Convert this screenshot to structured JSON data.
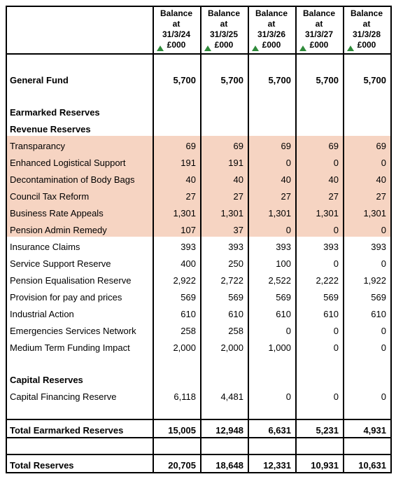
{
  "columns": [
    {
      "l1": "Balance",
      "l2": "at",
      "l3": "31/3/24",
      "l4": "£000"
    },
    {
      "l1": "Balance",
      "l2": "at",
      "l3": "31/3/25",
      "l4": "£000"
    },
    {
      "l1": "Balance",
      "l2": "at",
      "l3": "31/3/26",
      "l4": "£000"
    },
    {
      "l1": "Balance",
      "l2": "at",
      "l3": "31/3/27",
      "l4": "£000"
    },
    {
      "l1": "Balance",
      "l2": "at",
      "l3": "31/3/28",
      "l4": "£000"
    }
  ],
  "general_fund": {
    "label": "General Fund",
    "values": [
      "5,700",
      "5,700",
      "5,700",
      "5,700",
      "5,700"
    ]
  },
  "section_earmarked": "Earmarked Reserves",
  "section_revenue": "Revenue Reserves",
  "rows_highlight": [
    {
      "label": "Transparancy",
      "values": [
        "69",
        "69",
        "69",
        "69",
        "69"
      ]
    },
    {
      "label": "Enhanced Logistical Support",
      "values": [
        "191",
        "191",
        "0",
        "0",
        "0"
      ]
    },
    {
      "label": "Decontamination of Body Bags",
      "values": [
        "40",
        "40",
        "40",
        "40",
        "40"
      ]
    },
    {
      "label": "Council Tax Reform",
      "values": [
        "27",
        "27",
        "27",
        "27",
        "27"
      ]
    },
    {
      "label": "Business Rate Appeals",
      "values": [
        "1,301",
        "1,301",
        "1,301",
        "1,301",
        "1,301"
      ]
    },
    {
      "label": "Pension Admin Remedy",
      "values": [
        "107",
        "37",
        "0",
        "0",
        "0"
      ]
    }
  ],
  "rows_plain": [
    {
      "label": "Insurance Claims",
      "values": [
        "393",
        "393",
        "393",
        "393",
        "393"
      ]
    },
    {
      "label": "Service Support Reserve",
      "values": [
        "400",
        "250",
        "100",
        "0",
        "0"
      ]
    },
    {
      "label": "Pension Equalisation Reserve",
      "values": [
        "2,922",
        "2,722",
        "2,522",
        "2,222",
        "1,922"
      ]
    },
    {
      "label": "Provision for pay and prices",
      "values": [
        "569",
        "569",
        "569",
        "569",
        "569"
      ]
    },
    {
      "label": "Industrial Action",
      "values": [
        "610",
        "610",
        "610",
        "610",
        "610"
      ]
    },
    {
      "label": "Emergencies Services Network",
      "values": [
        "258",
        "258",
        "0",
        "0",
        "0"
      ]
    },
    {
      "label": "Medium Term Funding Impact",
      "values": [
        "2,000",
        "2,000",
        "1,000",
        "0",
        "0"
      ]
    }
  ],
  "section_capital": "Capital Reserves",
  "capital_row": {
    "label": "Capital Financing Reserve",
    "values": [
      "6,118",
      "4,481",
      "0",
      "0",
      "0"
    ]
  },
  "total_earmarked": {
    "label": "Total Earmarked Reserves",
    "values": [
      "15,005",
      "12,948",
      "6,631",
      "5,231",
      "4,931"
    ]
  },
  "total_reserves": {
    "label": "Total Reserves",
    "values": [
      "20,705",
      "18,648",
      "12,331",
      "10,931",
      "10,631"
    ]
  },
  "style": {
    "highlight_color": "#f6d4c2",
    "triangle_color": "#2f8a3a",
    "font_size_body": 13,
    "font_size_header": 12
  }
}
